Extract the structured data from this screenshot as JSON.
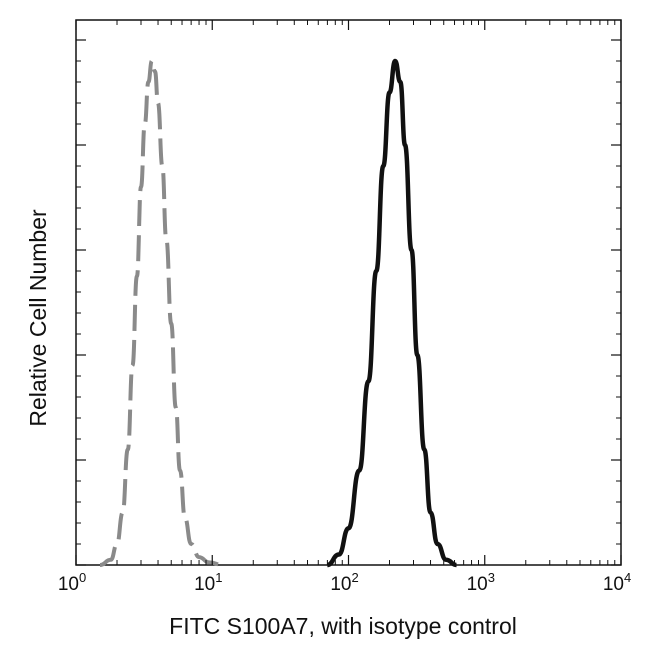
{
  "chart_data": {
    "type": "line",
    "title": "",
    "xlabel": "FITC  S100A7,  with isotype control",
    "ylabel": "Relative Cell Number",
    "x_scale": "log",
    "xlim": [
      1,
      10000
    ],
    "ylim": [
      0,
      100
    ],
    "x_ticks": [
      {
        "base": "10",
        "exp": "0",
        "value": 1
      },
      {
        "base": "10",
        "exp": "1",
        "value": 10
      },
      {
        "base": "10",
        "exp": "2",
        "value": 100
      },
      {
        "base": "10",
        "exp": "3",
        "value": 1000
      },
      {
        "base": "10",
        "exp": "4",
        "value": 10000
      }
    ],
    "y_ticks": [
      0,
      20,
      40,
      60,
      80,
      100
    ],
    "grid": false,
    "legend": "none",
    "series": [
      {
        "style": "dashed",
        "color": "#8a8a8a",
        "x": [
          1.5,
          1.8,
          2.0,
          2.2,
          2.4,
          2.6,
          2.8,
          3.0,
          3.2,
          3.4,
          3.6,
          3.8,
          4.0,
          4.3,
          4.6,
          5.0,
          5.4,
          5.8,
          6.3,
          7.0,
          8.0,
          9.5,
          12.0
        ],
        "y": [
          0,
          1,
          4,
          10,
          22,
          38,
          55,
          72,
          84,
          92,
          96,
          94,
          88,
          76,
          62,
          46,
          30,
          18,
          9,
          4,
          1.5,
          0.5,
          0
        ]
      },
      {
        "style": "solid",
        "color": "#111111",
        "x": [
          70,
          85,
          100,
          120,
          140,
          160,
          180,
          200,
          220,
          240,
          260,
          290,
          320,
          360,
          400,
          450,
          520,
          620
        ],
        "y": [
          0,
          2,
          7,
          18,
          35,
          56,
          76,
          90,
          96,
          92,
          80,
          60,
          40,
          22,
          10,
          4,
          1,
          0
        ]
      }
    ]
  }
}
